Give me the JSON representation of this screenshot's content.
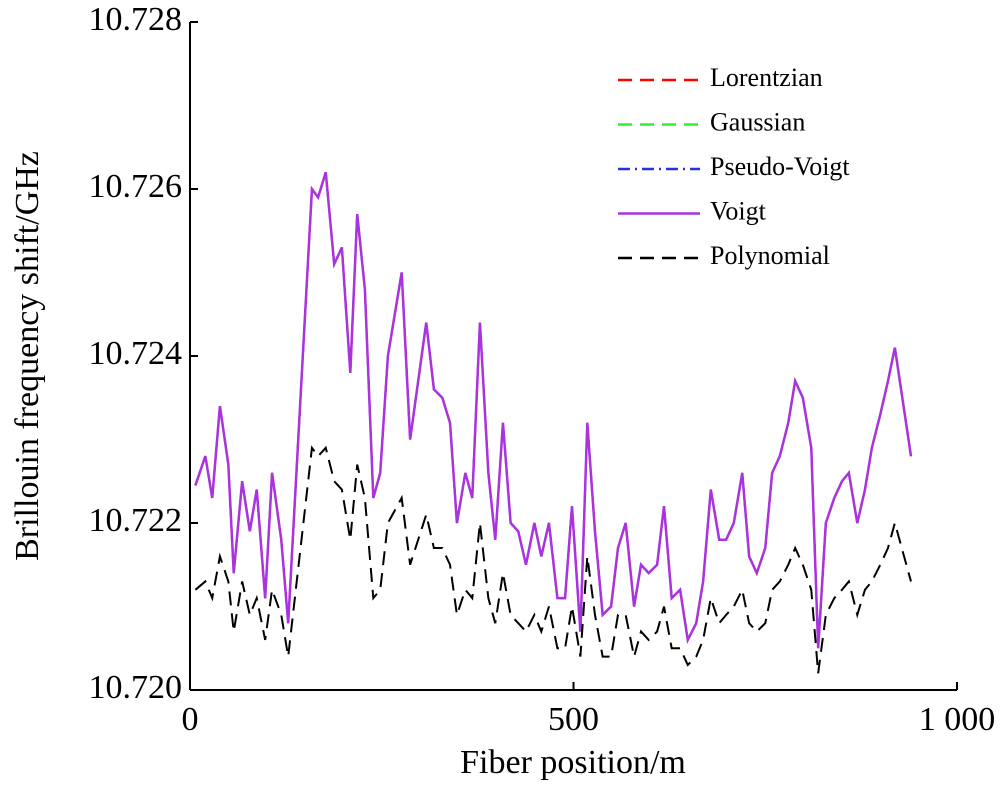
{
  "chart_data": {
    "type": "line",
    "xlabel": "Fiber position/m",
    "ylabel": "Brillouin frequency shift/GHz",
    "x": [
      7,
      20,
      29,
      39,
      50,
      57,
      68,
      78,
      87,
      98,
      107,
      119,
      128,
      159,
      167,
      177,
      188,
      198,
      209,
      218,
      228,
      239,
      248,
      258,
      276,
      287,
      308,
      318,
      329,
      339,
      348,
      359,
      368,
      378,
      389,
      398,
      408,
      418,
      428,
      438,
      449,
      458,
      468,
      479,
      489,
      498,
      509,
      518,
      528,
      538,
      549,
      558,
      568,
      579,
      588,
      598,
      609,
      618,
      628,
      639,
      649,
      660,
      669,
      679,
      690,
      699,
      709,
      720,
      729,
      739,
      750,
      759,
      769,
      780,
      789,
      799,
      810,
      819,
      829,
      840,
      850,
      859,
      870,
      880,
      889,
      900,
      910,
      919,
      940
    ],
    "xlim": [
      0,
      1000
    ],
    "xticks": [
      0,
      500,
      {
        "value": 1000,
        "label": "1 000"
      }
    ],
    "ylim": [
      10.72,
      10.728
    ],
    "yticks": [
      {
        "value": 10.72,
        "label": "10.720"
      },
      10.722,
      10.724,
      10.726,
      10.728
    ],
    "legend": "upper right",
    "series": [
      {
        "name": "Lorentzian",
        "color": "#ff0000",
        "dash": "dashed",
        "values": [
          10.72245,
          10.7228,
          10.7223,
          10.7234,
          10.7227,
          10.7214,
          10.7225,
          10.7219,
          10.7224,
          10.7211,
          10.7226,
          10.7218,
          10.7208,
          10.726,
          10.7259,
          10.7262,
          10.7251,
          10.7253,
          10.7238,
          10.7257,
          10.7248,
          10.7223,
          10.7226,
          10.724,
          10.725,
          10.723,
          10.7244,
          10.7236,
          10.7235,
          10.7232,
          10.722,
          10.7226,
          10.7223,
          10.7244,
          10.7226,
          10.7218,
          10.7232,
          10.722,
          10.7219,
          10.7215,
          10.722,
          10.7216,
          10.722,
          10.7211,
          10.7211,
          10.7222,
          10.7207,
          10.7232,
          10.7219,
          10.7209,
          10.721,
          10.7217,
          10.722,
          10.721,
          10.7215,
          10.7214,
          10.7215,
          10.7222,
          10.7211,
          10.7212,
          10.7206,
          10.7208,
          10.7213,
          10.7224,
          10.7218,
          10.7218,
          10.722,
          10.7226,
          10.7216,
          10.7214,
          10.7217,
          10.7226,
          10.7228,
          10.7232,
          10.7237,
          10.7235,
          10.7229,
          10.7205,
          10.722,
          10.7223,
          10.7225,
          10.7226,
          10.722,
          10.7224,
          10.7229,
          10.7233,
          10.7237,
          10.7241,
          10.7228
        ]
      },
      {
        "name": "Gaussian",
        "color": "#33ee33",
        "dash": "dashed",
        "values": [
          10.72245,
          10.7228,
          10.7223,
          10.7234,
          10.7227,
          10.7214,
          10.7225,
          10.7219,
          10.7224,
          10.7211,
          10.7226,
          10.7218,
          10.7208,
          10.726,
          10.7259,
          10.7262,
          10.7251,
          10.7253,
          10.7238,
          10.7257,
          10.7248,
          10.7223,
          10.7226,
          10.724,
          10.725,
          10.723,
          10.7244,
          10.7236,
          10.7235,
          10.7232,
          10.722,
          10.7226,
          10.7223,
          10.7244,
          10.7226,
          10.7218,
          10.7232,
          10.722,
          10.7219,
          10.7215,
          10.722,
          10.7216,
          10.722,
          10.7211,
          10.7211,
          10.7222,
          10.7207,
          10.7232,
          10.7219,
          10.7209,
          10.721,
          10.7217,
          10.722,
          10.721,
          10.7215,
          10.7214,
          10.7215,
          10.7222,
          10.7211,
          10.7212,
          10.7206,
          10.7208,
          10.7213,
          10.7224,
          10.7218,
          10.7218,
          10.722,
          10.7226,
          10.7216,
          10.7214,
          10.7217,
          10.7226,
          10.7228,
          10.7232,
          10.7237,
          10.7235,
          10.7229,
          10.7205,
          10.722,
          10.7223,
          10.7225,
          10.7226,
          10.722,
          10.7224,
          10.7229,
          10.7233,
          10.7237,
          10.7241,
          10.7228
        ]
      },
      {
        "name": "Pseudo-Voigt",
        "color": "#2233dd",
        "dash": "dashdot",
        "values": [
          10.72245,
          10.7228,
          10.7223,
          10.7234,
          10.7227,
          10.7214,
          10.7225,
          10.7219,
          10.7224,
          10.7211,
          10.7226,
          10.7218,
          10.7208,
          10.726,
          10.7259,
          10.7262,
          10.7251,
          10.7253,
          10.7238,
          10.7257,
          10.7248,
          10.7223,
          10.7226,
          10.724,
          10.725,
          10.723,
          10.7244,
          10.7236,
          10.7235,
          10.7232,
          10.722,
          10.7226,
          10.7223,
          10.7244,
          10.7226,
          10.7218,
          10.7232,
          10.722,
          10.7219,
          10.7215,
          10.722,
          10.7216,
          10.722,
          10.7211,
          10.7211,
          10.7222,
          10.7207,
          10.7232,
          10.7219,
          10.7209,
          10.721,
          10.7217,
          10.722,
          10.721,
          10.7215,
          10.7214,
          10.7215,
          10.7222,
          10.7211,
          10.7212,
          10.7206,
          10.7208,
          10.7213,
          10.7224,
          10.7218,
          10.7218,
          10.722,
          10.7226,
          10.7216,
          10.7214,
          10.7217,
          10.7226,
          10.7228,
          10.7232,
          10.7237,
          10.7235,
          10.7229,
          10.7205,
          10.722,
          10.7223,
          10.7225,
          10.7226,
          10.722,
          10.7224,
          10.7229,
          10.7233,
          10.7237,
          10.7241,
          10.7228
        ]
      },
      {
        "name": "Voigt",
        "color": "#aa33dd",
        "dash": "solid",
        "values": [
          10.72245,
          10.7228,
          10.7223,
          10.7234,
          10.7227,
          10.7214,
          10.7225,
          10.7219,
          10.7224,
          10.7211,
          10.7226,
          10.7218,
          10.7208,
          10.726,
          10.7259,
          10.7262,
          10.7251,
          10.7253,
          10.7238,
          10.7257,
          10.7248,
          10.7223,
          10.7226,
          10.724,
          10.725,
          10.723,
          10.7244,
          10.7236,
          10.7235,
          10.7232,
          10.722,
          10.7226,
          10.7223,
          10.7244,
          10.7226,
          10.7218,
          10.7232,
          10.722,
          10.7219,
          10.7215,
          10.722,
          10.7216,
          10.722,
          10.7211,
          10.7211,
          10.7222,
          10.7207,
          10.7232,
          10.7219,
          10.7209,
          10.721,
          10.7217,
          10.722,
          10.721,
          10.7215,
          10.7214,
          10.7215,
          10.7222,
          10.7211,
          10.7212,
          10.7206,
          10.7208,
          10.7213,
          10.7224,
          10.7218,
          10.7218,
          10.722,
          10.7226,
          10.7216,
          10.7214,
          10.7217,
          10.7226,
          10.7228,
          10.7232,
          10.7237,
          10.7235,
          10.7229,
          10.7205,
          10.722,
          10.7223,
          10.7225,
          10.7226,
          10.722,
          10.7224,
          10.7229,
          10.7233,
          10.7237,
          10.7241,
          10.7228
        ]
      },
      {
        "name": "Polynomial",
        "color": "#000000",
        "dash": "dashed",
        "values": [
          10.7212,
          10.7213,
          10.7211,
          10.7216,
          10.7213,
          10.7207,
          10.7213,
          10.7209,
          10.7211,
          10.7206,
          10.7212,
          10.7209,
          10.7204,
          10.7229,
          10.7228,
          10.7229,
          10.7225,
          10.7224,
          10.7218,
          10.7227,
          10.7223,
          10.7211,
          10.7212,
          10.722,
          10.7223,
          10.7215,
          10.7221,
          10.7217,
          10.7217,
          10.7215,
          10.7209,
          10.7212,
          10.7211,
          10.722,
          10.7211,
          10.7208,
          10.7214,
          10.7209,
          10.7208,
          10.7207,
          10.7209,
          10.7207,
          10.721,
          10.7205,
          10.7205,
          10.721,
          10.7204,
          10.7216,
          10.7209,
          10.7204,
          10.7204,
          10.7209,
          10.7209,
          10.7204,
          10.7207,
          10.7206,
          10.7207,
          10.721,
          10.7205,
          10.7205,
          10.7203,
          10.7204,
          10.7206,
          10.7211,
          10.7208,
          10.7209,
          10.721,
          10.7212,
          10.7208,
          10.7207,
          10.7208,
          10.7212,
          10.7213,
          10.7215,
          10.7217,
          10.7215,
          10.7212,
          10.7202,
          10.7209,
          10.7211,
          10.7212,
          10.7213,
          10.7209,
          10.7212,
          10.7213,
          10.7215,
          10.7217,
          10.722,
          10.7213
        ]
      }
    ]
  }
}
